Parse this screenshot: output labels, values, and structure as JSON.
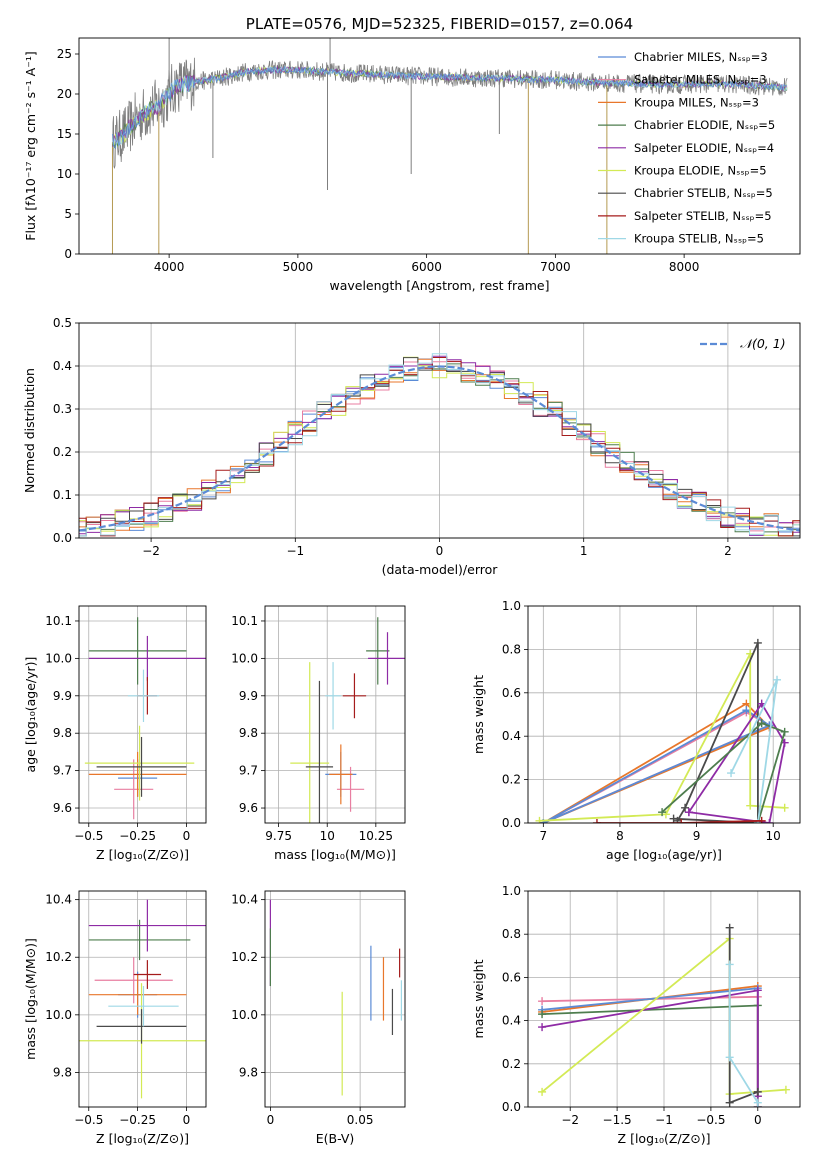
{
  "colors": {
    "chabrier_miles": "#5b8bd6",
    "salpeter_miles": "#e87ea1",
    "kroupa_miles": "#e8772b",
    "chabrier_elodie": "#4e7d4e",
    "salpeter_elodie": "#8e2ba5",
    "kroupa_elodie": "#d3ea55",
    "chabrier_stelib": "#4a4a4a",
    "salpeter_stelib": "#a51c1c",
    "kroupa_stelib": "#9fd8e6",
    "spectrum": "#7f7f7f",
    "gauss": "#5b8bd6"
  },
  "chart_data": [
    {
      "id": "spectrum",
      "type": "line",
      "title": "PLATE=0576, MJD=52325, FIBERID=0157, z=0.064",
      "xlabel": "wavelength [Angstrom, rest frame]",
      "ylabel": "Flux [fλ10⁻¹⁷ erg cm⁻² s⁻¹ A⁻¹]",
      "xlim": [
        3300,
        8900
      ],
      "ylim": [
        0,
        27
      ],
      "xticks": [
        4000,
        5000,
        6000,
        7000,
        8000
      ],
      "yticks": [
        0,
        5,
        10,
        15,
        20,
        25
      ],
      "legend": {
        "placement": "right",
        "entries": [
          {
            "label": "Chabrier MILES, Nₛₛₚ=3",
            "color": "chabrier_miles"
          },
          {
            "label": "Salpeter MILES, Nₛₛₚ=3",
            "color": "salpeter_miles"
          },
          {
            "label": "Kroupa MILES, Nₛₛₚ=3",
            "color": "kroupa_miles"
          },
          {
            "label": "Chabrier ELODIE, Nₛₛₚ=5",
            "color": "chabrier_elodie"
          },
          {
            "label": "Salpeter ELODIE, Nₛₛₚ=4",
            "color": "salpeter_elodie"
          },
          {
            "label": "Kroupa ELODIE, Nₛₛₚ=5",
            "color": "kroupa_elodie"
          },
          {
            "label": "Chabrier STELIB, Nₛₛₚ=5",
            "color": "chabrier_stelib"
          },
          {
            "label": "Salpeter STELIB, Nₛₛₚ=5",
            "color": "salpeter_stelib"
          },
          {
            "label": "Kroupa STELIB, Nₛₛₚ=5",
            "color": "kroupa_stelib"
          }
        ]
      },
      "continuum": [
        [
          3560,
          14
        ],
        [
          3650,
          15
        ],
        [
          3750,
          17
        ],
        [
          3850,
          18
        ],
        [
          3950,
          19
        ],
        [
          4050,
          21
        ],
        [
          4200,
          21.5
        ],
        [
          4400,
          22
        ],
        [
          4600,
          22.8
        ],
        [
          4800,
          23
        ],
        [
          5000,
          23
        ],
        [
          5200,
          22.8
        ],
        [
          5400,
          22.6
        ],
        [
          5600,
          22.5
        ],
        [
          5800,
          22.3
        ],
        [
          6000,
          22.2
        ],
        [
          6200,
          22.1
        ],
        [
          6400,
          22
        ],
        [
          6600,
          22
        ],
        [
          6800,
          21.8
        ],
        [
          7000,
          21.8
        ],
        [
          7200,
          21.5
        ],
        [
          7400,
          21.4
        ],
        [
          7600,
          21.3
        ],
        [
          7800,
          21.2
        ],
        [
          8000,
          21.2
        ],
        [
          8200,
          21.3
        ],
        [
          8400,
          21.2
        ],
        [
          8600,
          21
        ],
        [
          8800,
          20.8
        ]
      ],
      "spikes": [
        [
          3560,
          0,
          1.5
        ],
        [
          3920,
          0,
          0.6
        ],
        [
          4000,
          27.5,
          0.7
        ],
        [
          4340,
          12,
          0.3
        ],
        [
          5230,
          8,
          0.5
        ],
        [
          5250,
          27,
          0.4
        ],
        [
          5880,
          10,
          0.3
        ],
        [
          6565,
          15,
          0.3
        ],
        [
          6790,
          0,
          0.4
        ],
        [
          7400,
          0,
          0.5
        ]
      ]
    },
    {
      "id": "residuals",
      "type": "bar",
      "xlabel": "(data-model)/error",
      "ylabel": "Normed distribution",
      "xlim": [
        -2.5,
        2.5
      ],
      "ylim": [
        0,
        0.5
      ],
      "xticks": [
        -2,
        -1,
        0,
        1,
        2
      ],
      "yticks": [
        0.0,
        0.1,
        0.2,
        0.3,
        0.4,
        0.5
      ],
      "gauss_label": "𝒩(0, 1)",
      "bin_width": 0.1,
      "grid": true
    },
    {
      "id": "age_vs_Z",
      "type": "scatter",
      "xlabel": "Z [log₁₀(Z/Z⊙)]",
      "ylabel": "age  [log₁₀(age/yr)]",
      "xlim": [
        -0.55,
        0.1
      ],
      "ylim": [
        9.56,
        10.14
      ],
      "xticks": [
        -0.5,
        -0.25,
        0.0
      ],
      "yticks": [
        9.6,
        9.7,
        9.8,
        9.9,
        10.0,
        10.1
      ],
      "points": [
        {
          "x": -0.25,
          "y": 9.68,
          "xerr": 0.1,
          "yerr": 0.05,
          "color": "chabrier_miles"
        },
        {
          "x": -0.27,
          "y": 9.65,
          "xerr": 0.1,
          "yerr": 0.08,
          "color": "salpeter_miles"
        },
        {
          "x": -0.25,
          "y": 9.69,
          "xerr": 0.25,
          "yerr": 0.06,
          "color": "kroupa_miles"
        },
        {
          "x": -0.25,
          "y": 10.02,
          "xerr": 0.25,
          "yerr": 0.09,
          "color": "chabrier_elodie"
        },
        {
          "x": -0.2,
          "y": 10.0,
          "xerr": 0.3,
          "yerr": 0.06,
          "color": "salpeter_elodie"
        },
        {
          "x": -0.24,
          "y": 9.72,
          "xerr": 0.28,
          "yerr": 0.1,
          "color": "kroupa_elodie"
        },
        {
          "x": -0.23,
          "y": 9.71,
          "xerr": 0.23,
          "yerr": 0.08,
          "color": "chabrier_stelib"
        },
        {
          "x": -0.2,
          "y": 9.9,
          "xerr": 0.05,
          "yerr": 0.05,
          "color": "salpeter_stelib"
        },
        {
          "x": -0.22,
          "y": 9.9,
          "xerr": 0.08,
          "yerr": 0.07,
          "color": "kroupa_stelib"
        }
      ]
    },
    {
      "id": "age_vs_mass",
      "type": "scatter",
      "xlabel": "mass [log₁₀(M/M⊙)]",
      "ylabel": "",
      "xlim": [
        9.68,
        10.4
      ],
      "ylim": [
        9.56,
        10.14
      ],
      "xticks": [
        9.75,
        10.0,
        10.25
      ],
      "yticks": [
        9.6,
        9.7,
        9.8,
        9.9,
        10.0,
        10.1
      ],
      "points": [
        {
          "x": 10.07,
          "y": 9.69,
          "xerr": 0.08,
          "yerr": 0.06,
          "color": "chabrier_miles"
        },
        {
          "x": 10.12,
          "y": 9.65,
          "xerr": 0.07,
          "yerr": 0.06,
          "color": "salpeter_miles"
        },
        {
          "x": 10.07,
          "y": 9.69,
          "xerr": 0.06,
          "yerr": 0.08,
          "color": "kroupa_miles"
        },
        {
          "x": 10.26,
          "y": 10.02,
          "xerr": 0.06,
          "yerr": 0.09,
          "color": "chabrier_elodie"
        },
        {
          "x": 10.31,
          "y": 10.0,
          "xerr": 0.1,
          "yerr": 0.07,
          "color": "salpeter_elodie"
        },
        {
          "x": 9.91,
          "y": 9.72,
          "xerr": 0.1,
          "yerr": 0.27,
          "color": "kroupa_elodie"
        },
        {
          "x": 9.96,
          "y": 9.71,
          "xerr": 0.07,
          "yerr": 0.23,
          "color": "chabrier_stelib"
        },
        {
          "x": 10.14,
          "y": 9.9,
          "xerr": 0.06,
          "yerr": 0.06,
          "color": "salpeter_stelib"
        },
        {
          "x": 10.03,
          "y": 9.9,
          "xerr": 0.04,
          "yerr": 0.09,
          "color": "kroupa_stelib"
        }
      ]
    },
    {
      "id": "massweight_vs_age",
      "type": "line",
      "xlabel": "age  [log₁₀(age/yr)]",
      "ylabel": "mass weight",
      "xlim": [
        6.8,
        10.35
      ],
      "ylim": [
        0,
        1
      ],
      "xticks": [
        7,
        8,
        9,
        10
      ],
      "yticks": [
        0.0,
        0.2,
        0.4,
        0.6,
        0.8,
        1.0
      ],
      "series": [
        {
          "color": "salpeter_miles",
          "points": [
            [
              7.0,
              0.0
            ],
            [
              9.65,
              0.51
            ],
            [
              9.95,
              0.45
            ],
            [
              7.0,
              0.0
            ]
          ]
        },
        {
          "color": "kroupa_miles",
          "points": [
            [
              7.0,
              0.0
            ],
            [
              9.65,
              0.55
            ],
            [
              9.95,
              0.44
            ],
            [
              7.0,
              0.0
            ]
          ]
        },
        {
          "color": "chabrier_miles",
          "points": [
            [
              7.0,
              0.0
            ],
            [
              9.65,
              0.52
            ],
            [
              9.95,
              0.45
            ],
            [
              7.0,
              0.0
            ]
          ]
        },
        {
          "color": "kroupa_elodie",
          "points": [
            [
              6.95,
              0.01
            ],
            [
              8.6,
              0.04
            ],
            [
              9.7,
              0.78
            ],
            [
              9.7,
              0.08
            ],
            [
              10.15,
              0.07
            ]
          ]
        },
        {
          "color": "chabrier_stelib",
          "points": [
            [
              8.75,
              0.01
            ],
            [
              8.85,
              0.07
            ],
            [
              9.8,
              0.83
            ],
            [
              9.8,
              0.0
            ],
            [
              8.7,
              0.02
            ]
          ]
        },
        {
          "color": "salpeter_elodie",
          "points": [
            [
              8.9,
              0.05
            ],
            [
              9.85,
              0.55
            ],
            [
              10.15,
              0.37
            ],
            [
              9.95,
              0.0
            ],
            [
              8.9,
              0.05
            ]
          ]
        },
        {
          "color": "chabrier_elodie",
          "points": [
            [
              8.55,
              0.05
            ],
            [
              9.85,
              0.46
            ],
            [
              10.15,
              0.42
            ],
            [
              9.8,
              0.0
            ]
          ]
        },
        {
          "color": "kroupa_stelib",
          "points": [
            [
              9.45,
              0.23
            ],
            [
              10.05,
              0.66
            ],
            [
              9.8,
              0.0
            ]
          ]
        },
        {
          "color": "salpeter_stelib",
          "points": [
            [
              7.7,
              0.0
            ],
            [
              8.8,
              0.0
            ],
            [
              9.85,
              0.01
            ]
          ]
        }
      ]
    },
    {
      "id": "mass_vs_Z",
      "type": "scatter",
      "xlabel": "Z [log₁₀(Z/Z⊙)]",
      "ylabel": "mass [log₁₀(M/M⊙)]",
      "xlim": [
        -0.55,
        0.1
      ],
      "ylim": [
        9.68,
        10.43
      ],
      "xticks": [
        -0.5,
        -0.25,
        0.0
      ],
      "yticks": [
        9.8,
        10.0,
        10.2,
        10.4
      ],
      "points": [
        {
          "x": -0.25,
          "y": 10.07,
          "xerr": 0.1,
          "yerr": 0.08,
          "color": "chabrier_miles"
        },
        {
          "x": -0.27,
          "y": 10.12,
          "xerr": 0.2,
          "yerr": 0.08,
          "color": "salpeter_miles"
        },
        {
          "x": -0.25,
          "y": 10.07,
          "xerr": 0.25,
          "yerr": 0.07,
          "color": "kroupa_miles"
        },
        {
          "x": -0.24,
          "y": 10.26,
          "xerr": 0.26,
          "yerr": 0.07,
          "color": "chabrier_elodie"
        },
        {
          "x": -0.2,
          "y": 10.31,
          "xerr": 0.3,
          "yerr": 0.09,
          "color": "salpeter_elodie"
        },
        {
          "x": -0.23,
          "y": 9.91,
          "xerr": 0.35,
          "yerr": 0.2,
          "color": "kroupa_elodie"
        },
        {
          "x": -0.23,
          "y": 9.96,
          "xerr": 0.23,
          "yerr": 0.06,
          "color": "chabrier_stelib"
        },
        {
          "x": -0.2,
          "y": 10.14,
          "xerr": 0.07,
          "yerr": 0.05,
          "color": "salpeter_stelib"
        },
        {
          "x": -0.22,
          "y": 10.03,
          "xerr": 0.18,
          "yerr": 0.07,
          "color": "kroupa_stelib"
        }
      ]
    },
    {
      "id": "mass_vs_ebv",
      "type": "scatter",
      "xlabel": "E(B-V)",
      "ylabel": "",
      "xlim": [
        -0.003,
        0.075
      ],
      "ylim": [
        9.68,
        10.43
      ],
      "xticks": [
        0.0,
        0.05
      ],
      "yticks": [
        9.8,
        10.0,
        10.2,
        10.4
      ],
      "points": [
        {
          "x": 0.0,
          "y": 10.25,
          "xerr": 0.0,
          "yerr": 0.15,
          "color": "salpeter_elodie"
        },
        {
          "x": 0.0,
          "y": 10.2,
          "xerr": 0.0,
          "yerr": 0.1,
          "color": "chabrier_elodie"
        },
        {
          "x": 0.04,
          "y": 9.9,
          "xerr": 0.0,
          "yerr": 0.18,
          "color": "kroupa_elodie"
        },
        {
          "x": 0.056,
          "y": 10.11,
          "xerr": 0.0,
          "yerr": 0.13,
          "color": "chabrier_miles"
        },
        {
          "x": 0.063,
          "y": 10.09,
          "xerr": 0.0,
          "yerr": 0.11,
          "color": "kroupa_miles"
        },
        {
          "x": 0.068,
          "y": 10.01,
          "xerr": 0.0,
          "yerr": 0.08,
          "color": "chabrier_stelib"
        },
        {
          "x": 0.072,
          "y": 10.18,
          "xerr": 0.0,
          "yerr": 0.05,
          "color": "salpeter_stelib"
        },
        {
          "x": 0.073,
          "y": 10.05,
          "xerr": 0.0,
          "yerr": 0.07,
          "color": "kroupa_stelib"
        }
      ]
    },
    {
      "id": "massweight_vs_Z",
      "type": "line",
      "xlabel": "Z [log₁₀(Z/Z⊙)]",
      "ylabel": "mass weight",
      "xlim": [
        -2.45,
        0.45
      ],
      "ylim": [
        0,
        1
      ],
      "xticks": [
        -2.0,
        -1.5,
        -1.0,
        -0.5,
        0.0
      ],
      "yticks": [
        0.0,
        0.2,
        0.4,
        0.6,
        0.8,
        1.0
      ],
      "series": [
        {
          "color": "salpeter_miles",
          "points": [
            [
              -2.3,
              0.49
            ],
            [
              0.0,
              0.51
            ],
            [
              0.0,
              0.0
            ]
          ]
        },
        {
          "color": "kroupa_miles",
          "points": [
            [
              -2.3,
              0.44
            ],
            [
              0.0,
              0.56
            ],
            [
              0.0,
              0.0
            ]
          ]
        },
        {
          "color": "chabrier_miles",
          "points": [
            [
              -2.3,
              0.45
            ],
            [
              0.0,
              0.55
            ],
            [
              0.0,
              0.0
            ]
          ]
        },
        {
          "color": "chabrier_elodie",
          "points": [
            [
              -2.3,
              0.43
            ],
            [
              0.0,
              0.47
            ],
            [
              0.0,
              0.05
            ]
          ]
        },
        {
          "color": "salpeter_elodie",
          "points": [
            [
              -2.3,
              0.37
            ],
            [
              0.0,
              0.54
            ],
            [
              0.0,
              0.05
            ]
          ]
        },
        {
          "color": "kroupa_elodie",
          "points": [
            [
              -2.3,
              0.07
            ],
            [
              -0.3,
              0.78
            ],
            [
              -0.3,
              0.06
            ],
            [
              0.3,
              0.08
            ]
          ]
        },
        {
          "color": "chabrier_stelib",
          "points": [
            [
              -0.3,
              0.83
            ],
            [
              -0.3,
              0.02
            ],
            [
              0.0,
              0.07
            ]
          ]
        },
        {
          "color": "kroupa_stelib",
          "points": [
            [
              -0.3,
              0.66
            ],
            [
              -0.3,
              0.23
            ],
            [
              0.0,
              0.02
            ]
          ]
        }
      ]
    }
  ]
}
